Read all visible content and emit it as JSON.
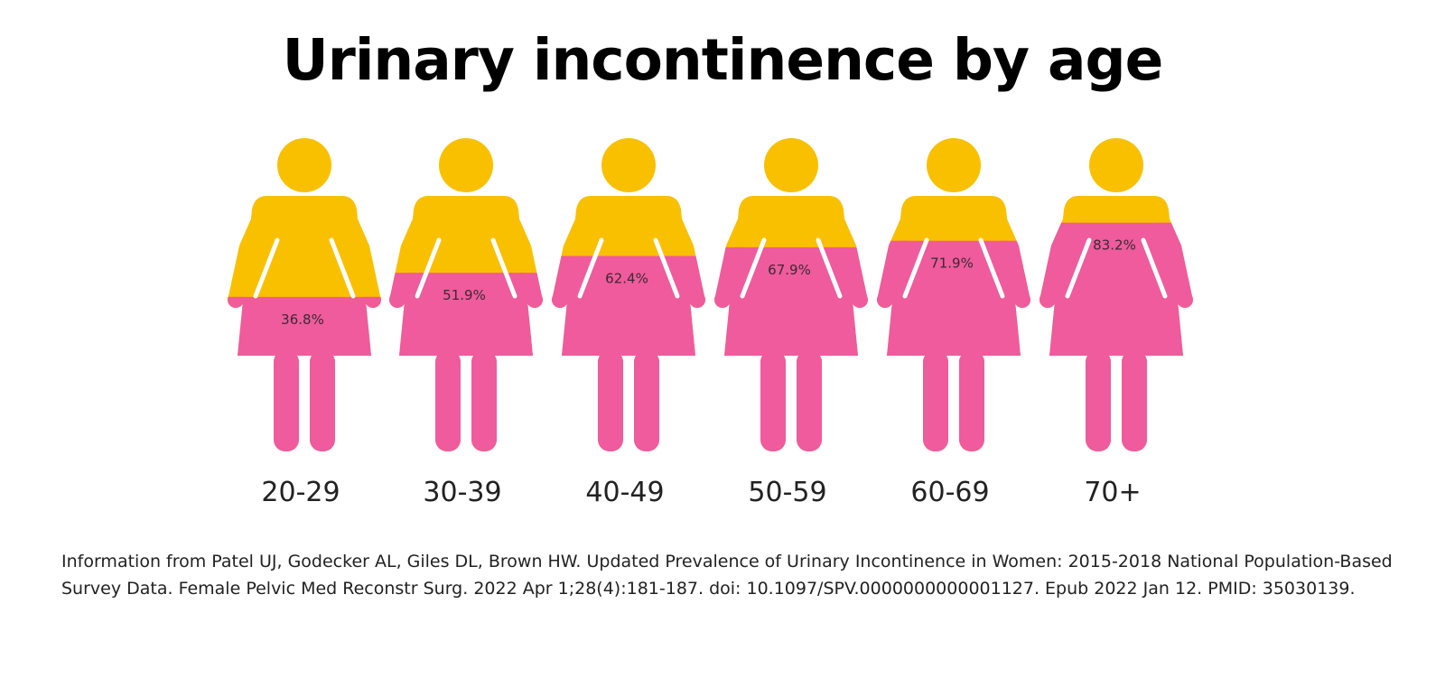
{
  "title": "Urinary incontinence by age",
  "colors": {
    "filled": "#ef5b9c",
    "unfilled": "#f9c000",
    "label_text": "#3a2a33",
    "category_text": "#222222"
  },
  "icon": "woman-figure-icon",
  "chart_data": {
    "type": "bar",
    "title": "Urinary incontinence by age",
    "xlabel": "",
    "ylabel": "",
    "ylim": [
      0,
      100
    ],
    "categories": [
      "20-29",
      "30-39",
      "40-49",
      "50-59",
      "60-69",
      "70+"
    ],
    "values": [
      36.8,
      51.9,
      62.4,
      67.9,
      71.9,
      83.2
    ],
    "value_labels": [
      "36.8%",
      "51.9%",
      "62.4%",
      "67.9%",
      "71.9%",
      "83.2%"
    ]
  },
  "source": "Information from Patel UJ, Godecker AL, Giles DL, Brown HW. Updated Prevalence of Urinary Incontinence in Women: 2015-2018 National Population-Based Survey Data. Female Pelvic Med Reconstr Surg. 2022 Apr 1;28(4):181-187. doi: 10.1097/SPV.0000000000001127. Epub 2022 Jan 12. PMID: 35030139."
}
